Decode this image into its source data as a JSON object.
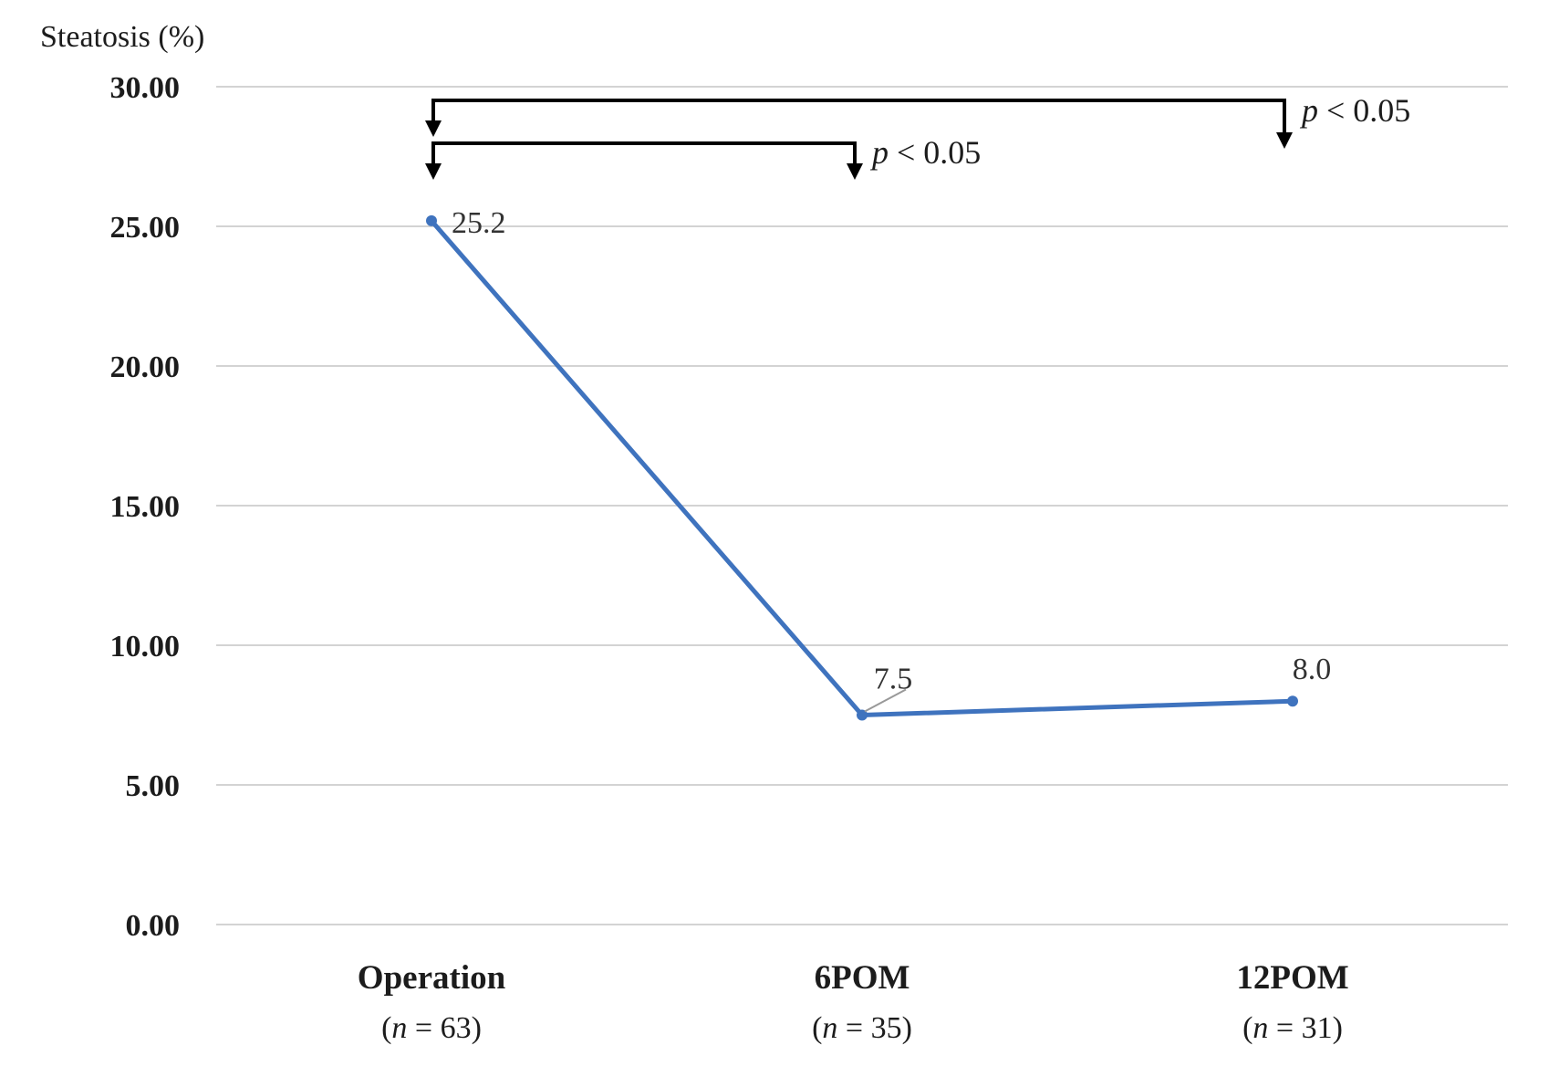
{
  "chart_data": {
    "type": "line",
    "title": "",
    "xlabel": "",
    "ylabel": "Steatosis (%)",
    "ylim": [
      0,
      30
    ],
    "ytick_step": 5,
    "yticks": [
      {
        "value": 0,
        "label": "0.00"
      },
      {
        "value": 5,
        "label": "5.00"
      },
      {
        "value": 10,
        "label": "10.00"
      },
      {
        "value": 15,
        "label": "15.00"
      },
      {
        "value": 20,
        "label": "20.00"
      },
      {
        "value": 25,
        "label": "25.00"
      },
      {
        "value": 30,
        "label": "30.00"
      }
    ],
    "grid": "horizontal-only",
    "legend_position": "none",
    "categories": [
      "Operation",
      "6POM",
      "12POM"
    ],
    "category_sublabels": [
      "(n = 63)",
      "(n = 35)",
      "(n = 31)"
    ],
    "series": [
      {
        "name": "Steatosis (%)",
        "values": [
          25.2,
          7.5,
          8.0
        ],
        "point_labels": [
          "25.2",
          "7.5",
          "8.0"
        ],
        "n_counts": [
          63,
          35,
          31
        ]
      }
    ],
    "annotations": [
      {
        "type": "significance-bracket",
        "from": "Operation",
        "to": "12POM",
        "label": "p < 0.05"
      },
      {
        "type": "significance-bracket",
        "from": "Operation",
        "to": "6POM",
        "label": "p < 0.05"
      }
    ],
    "colors": {
      "line": "#3F73BE",
      "marker": "#3F73BE",
      "gridline": "#D3D3D3",
      "axis_text": "#1C1C1C",
      "data_label": "#333333",
      "bracket": "#000000",
      "leader": "#999999",
      "background": "#FFFFFF"
    }
  }
}
